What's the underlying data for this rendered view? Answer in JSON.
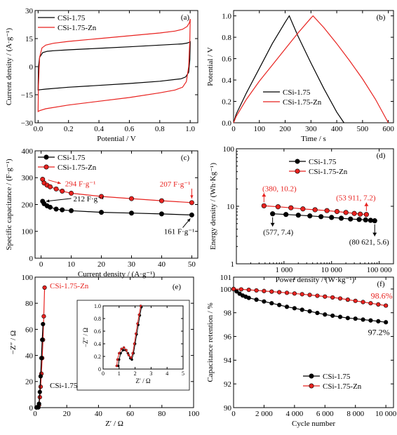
{
  "chart_data": [
    {
      "panel": "(a)",
      "type": "line",
      "xlabel": "Potential / V",
      "ylabel": "Current density / (A·g⁻¹)",
      "xlim": [
        -0.02,
        1.05
      ],
      "ylim": [
        -30,
        30
      ],
      "xticks": [
        0.0,
        0.2,
        0.4,
        0.6,
        0.8,
        1.0
      ],
      "xtick_labels": [
        "0.0",
        "0.2",
        "0.4",
        "0.6",
        "0.8",
        "1.0"
      ],
      "yticks": [
        -30,
        -15,
        0,
        15,
        30
      ],
      "ytick_labels": [
        "−30",
        "−15",
        "0",
        "15",
        "30"
      ],
      "legend_position": "top-left",
      "series": [
        {
          "name": "CSi-1.75",
          "color": "#000000",
          "x": [
            0.0,
            0.002,
            0.01,
            0.03,
            0.06,
            0.1,
            0.2,
            0.4,
            0.6,
            0.8,
            0.95,
            0.98,
            0.99,
            1.0,
            0.998,
            0.99,
            0.97,
            0.94,
            0.8,
            0.6,
            0.4,
            0.2,
            0.05,
            0.015,
            0.005,
            0.0
          ],
          "y": [
            -12.5,
            0,
            5,
            7.5,
            8.2,
            8.5,
            9,
            9.8,
            10.6,
            11.5,
            12.2,
            12.6,
            12.9,
            13.3,
            4,
            -3,
            -5.5,
            -6.5,
            -7.8,
            -9,
            -10,
            -11,
            -12,
            -12.3,
            -12.4,
            -12.5
          ]
        },
        {
          "name": "CSi-1.75-Zn",
          "color": "#e8221f",
          "x": [
            0.0,
            0.002,
            0.01,
            0.025,
            0.05,
            0.1,
            0.2,
            0.4,
            0.6,
            0.8,
            0.9,
            0.95,
            0.98,
            0.995,
            1.0,
            0.998,
            0.99,
            0.975,
            0.95,
            0.9,
            0.8,
            0.6,
            0.4,
            0.2,
            0.05,
            0.01,
            0.0
          ],
          "y": [
            -24,
            -10,
            5,
            10,
            11.5,
            12.5,
            13.5,
            15,
            16.5,
            18,
            19,
            20,
            21.5,
            23.5,
            25.5,
            15,
            0,
            -8,
            -11,
            -12.5,
            -14,
            -16.5,
            -18.5,
            -20.5,
            -22.5,
            -23.5,
            -24
          ]
        }
      ]
    },
    {
      "panel": "(b)",
      "type": "line",
      "xlabel": "Time / s",
      "ylabel": "Potential / V",
      "xlim": [
        0,
        620
      ],
      "ylim": [
        0,
        1.05
      ],
      "xticks": [
        0,
        100,
        200,
        300,
        400,
        500,
        600
      ],
      "xtick_labels": [
        "0",
        "100",
        "200",
        "300",
        "400",
        "500",
        "600"
      ],
      "yticks": [
        0,
        0.2,
        0.4,
        0.6,
        0.8,
        1.0
      ],
      "ytick_labels": [
        "0.0",
        "0.2",
        "0.4",
        "0.6",
        "0.8",
        "1.0"
      ],
      "legend_position": "bottom-center",
      "series": [
        {
          "name": "CSi-1.75",
          "color": "#000000",
          "x": [
            0,
            10,
            50,
            100,
            150,
            200,
            216,
            250,
            300,
            350,
            400,
            428
          ],
          "y": [
            0.0,
            0.08,
            0.28,
            0.51,
            0.74,
            0.94,
            1.0,
            0.81,
            0.56,
            0.32,
            0.1,
            0.0
          ]
        },
        {
          "name": "CSi-1.75-Zn",
          "color": "#e8221f",
          "x": [
            0,
            10,
            50,
            100,
            150,
            200,
            250,
            300,
            308,
            350,
            400,
            450,
            500,
            550,
            600
          ],
          "y": [
            0.0,
            0.06,
            0.22,
            0.39,
            0.54,
            0.69,
            0.84,
            0.98,
            1.0,
            0.89,
            0.74,
            0.58,
            0.41,
            0.22,
            0.0
          ]
        }
      ]
    },
    {
      "panel": "(c)",
      "type": "line",
      "xlabel": "Current density / (A·g⁻¹)",
      "ylabel": "Specific capacitance / (F·g⁻¹)",
      "xlim": [
        -2,
        52
      ],
      "ylim": [
        0,
        400
      ],
      "xticks": [
        0,
        10,
        20,
        30,
        40,
        50
      ],
      "xtick_labels": [
        "0",
        "10",
        "20",
        "30",
        "40",
        "50"
      ],
      "yticks": [
        0,
        100,
        200,
        300,
        400
      ],
      "ytick_labels": [
        "0",
        "100",
        "200",
        "300",
        "400"
      ],
      "legend_position": "top-left",
      "series": [
        {
          "name": "CSi-1.75",
          "color": "#000000",
          "x": [
            0.5,
            1,
            2,
            3,
            5,
            7,
            10,
            20,
            30,
            40,
            50
          ],
          "y": [
            212,
            203,
            195,
            190,
            183,
            180,
            177,
            171,
            168,
            165,
            161
          ]
        },
        {
          "name": "CSi-1.75-Zn",
          "color": "#e8221f",
          "x": [
            0.5,
            1,
            2,
            3,
            5,
            7,
            10,
            20,
            30,
            40,
            50
          ],
          "y": [
            294,
            280,
            272,
            266,
            258,
            250,
            242,
            230,
            222,
            214,
            207
          ]
        }
      ],
      "annotations": [
        {
          "text": "294 F·g⁻¹",
          "color": "#e8221f"
        },
        {
          "text": "207 F·g⁻¹",
          "color": "#e8221f"
        },
        {
          "text": "212 F·g⁻¹",
          "color": "#000000"
        },
        {
          "text": "161 F·g⁻¹",
          "color": "#000000"
        }
      ]
    },
    {
      "panel": "(d)",
      "type": "line",
      "xscale": "log",
      "yscale": "log",
      "xlabel": "Power density / (W·kg⁻¹)",
      "ylabel": "Energy density / (Wh·Kg⁻¹)",
      "xlim": [
        100,
        200000
      ],
      "ylim": [
        1,
        100
      ],
      "xticks": [
        1000,
        10000,
        100000
      ],
      "xtick_labels": [
        "1 000",
        "10 000",
        "100 000"
      ],
      "yticks": [
        1,
        10,
        100
      ],
      "ytick_labels": [
        "1",
        "10",
        "100"
      ],
      "legend_position": "top-center",
      "series": [
        {
          "name": "CSi-1.75",
          "color": "#000000",
          "x": [
            577,
            1100,
            2000,
            3500,
            6000,
            10000,
            16000,
            25000,
            38000,
            52000,
            66000,
            80621
          ],
          "y": [
            7.4,
            7.2,
            7.0,
            6.8,
            6.6,
            6.4,
            6.2,
            6.0,
            5.9,
            5.8,
            5.7,
            5.6
          ]
        },
        {
          "name": "CSi-1.75-Zn",
          "color": "#e8221f",
          "x": [
            380,
            750,
            1400,
            2500,
            4500,
            8000,
            13000,
            20000,
            30000,
            40000,
            53911
          ],
          "y": [
            10.2,
            9.8,
            9.4,
            9.0,
            8.7,
            8.4,
            8.1,
            7.8,
            7.5,
            7.3,
            7.2
          ]
        }
      ],
      "annotations": [
        {
          "text": "(380, 10.2)",
          "color": "#e8221f"
        },
        {
          "text": "(53 911, 7.2)",
          "color": "#e8221f"
        },
        {
          "text": "(577, 7.4)",
          "color": "#000000"
        },
        {
          "text": "(80 621, 5.6)",
          "color": "#000000"
        }
      ]
    },
    {
      "panel": "(e)",
      "type": "line",
      "xlabel": "Z′ / Ω",
      "ylabel": "−Z″ / Ω",
      "xlim": [
        0,
        100
      ],
      "ylim": [
        0,
        100
      ],
      "xticks": [
        0,
        20,
        40,
        60,
        80,
        100
      ],
      "xtick_labels": [
        "0",
        "20",
        "40",
        "60",
        "80",
        "100"
      ],
      "yticks": [
        0,
        20,
        40,
        60,
        80,
        100
      ],
      "ytick_labels": [
        "0",
        "20",
        "40",
        "60",
        "80",
        "100"
      ],
      "series": [
        {
          "name": "CSi-1.75-Zn",
          "color": "#e8221f",
          "x": [
            0.9,
            1.2,
            1.6,
            2.0,
            2.5,
            3.0,
            3.5,
            4.0,
            4.5,
            5.0,
            5.5,
            6.0
          ],
          "y": [
            0.1,
            0.3,
            0.3,
            0.2,
            2,
            8,
            16,
            26,
            38,
            52,
            70,
            92
          ]
        },
        {
          "name": "CSi-1.75",
          "color": "#000000",
          "x": [
            0.9,
            1.2,
            1.6,
            2.0,
            2.5,
            3.0,
            3.5,
            4.0,
            4.5,
            5.0
          ],
          "y": [
            0.1,
            0.3,
            0.3,
            0.2,
            3,
            12,
            24,
            38,
            52,
            64
          ]
        }
      ],
      "labels": [
        {
          "text": "CSi-1.75-Zn",
          "color": "#e8221f"
        },
        {
          "text": "CSi-1.75",
          "color": "#000000"
        }
      ],
      "inset": {
        "xlabel": "Z′ / Ω",
        "ylabel": "−Z″ / Ω",
        "xlim": [
          0,
          5
        ],
        "ylim": [
          0,
          1.0
        ],
        "xticks": [
          0,
          1,
          2,
          3,
          4,
          5
        ],
        "xtick_labels": [
          "0",
          "1",
          "2",
          "3",
          "4",
          "5"
        ],
        "yticks": [
          0,
          0.2,
          0.4,
          0.6,
          0.8,
          1.0
        ],
        "ytick_labels": [
          "0",
          "0.2",
          "0.4",
          "0.6",
          "0.8",
          "1.0"
        ],
        "series": [
          {
            "color": "#000000",
            "x": [
              0.95,
              1.0,
              1.1,
              1.25,
              1.4,
              1.55,
              1.7,
              1.8,
              1.9,
              2.0,
              2.1,
              2.2,
              2.3,
              2.4
            ],
            "y": [
              0.05,
              0.15,
              0.25,
              0.3,
              0.3,
              0.25,
              0.17,
              0.15,
              0.25,
              0.4,
              0.55,
              0.7,
              0.85,
              0.98
            ]
          },
          {
            "color": "#e8221f",
            "x": [
              0.85,
              0.9,
              1.0,
              1.15,
              1.3,
              1.45,
              1.6,
              1.75,
              1.85,
              1.95,
              2.05,
              2.15,
              2.25,
              2.35
            ],
            "y": [
              0.05,
              0.15,
              0.25,
              0.32,
              0.34,
              0.3,
              0.22,
              0.18,
              0.25,
              0.4,
              0.56,
              0.72,
              0.86,
              1.0
            ]
          }
        ]
      }
    },
    {
      "panel": "(f)",
      "type": "line",
      "xlabel": "Cycle number",
      "ylabel": "Capacitance retention / %",
      "xlim": [
        0,
        10500
      ],
      "ylim": [
        90,
        101
      ],
      "xticks": [
        0,
        2000,
        4000,
        6000,
        8000,
        10000
      ],
      "xtick_labels": [
        "0",
        "2 000",
        "4 000",
        "6 000",
        "8 000",
        "10 000"
      ],
      "yticks": [
        90,
        92,
        94,
        96,
        98,
        100
      ],
      "ytick_labels": [
        "90",
        "92",
        "94",
        "96",
        "98",
        "100"
      ],
      "extra_ytick_labels": [
        "101"
      ],
      "legend_position": "bottom-right",
      "series": [
        {
          "name": "CSi-1.75",
          "color": "#000000",
          "x": [
            0,
            200,
            400,
            600,
            800,
            1000,
            1500,
            2000,
            2500,
            3000,
            3500,
            4000,
            4500,
            5000,
            5500,
            6000,
            6500,
            7000,
            7500,
            8000,
            8500,
            9000,
            9500,
            10000
          ],
          "y": [
            100.0,
            99.8,
            99.6,
            99.45,
            99.35,
            99.25,
            99.1,
            98.95,
            98.8,
            98.65,
            98.5,
            98.38,
            98.25,
            98.12,
            97.98,
            97.85,
            97.75,
            97.65,
            97.55,
            97.5,
            97.42,
            97.35,
            97.28,
            97.2
          ]
        },
        {
          "name": "CSi-1.75-Zn",
          "color": "#e8221f",
          "x": [
            0,
            500,
            1000,
            1500,
            2000,
            2500,
            3000,
            3500,
            4000,
            4500,
            5000,
            5500,
            6000,
            6500,
            7000,
            7500,
            8000,
            8500,
            9000,
            9500,
            10000
          ],
          "y": [
            100.0,
            99.97,
            99.93,
            99.88,
            99.83,
            99.78,
            99.73,
            99.68,
            99.62,
            99.56,
            99.5,
            99.43,
            99.36,
            99.29,
            99.2,
            99.1,
            99.0,
            98.9,
            98.8,
            98.7,
            98.6
          ]
        }
      ],
      "annotations": [
        {
          "text": "98.6%",
          "color": "#e8221f"
        },
        {
          "text": "97.2%",
          "color": "#000000"
        }
      ]
    }
  ]
}
